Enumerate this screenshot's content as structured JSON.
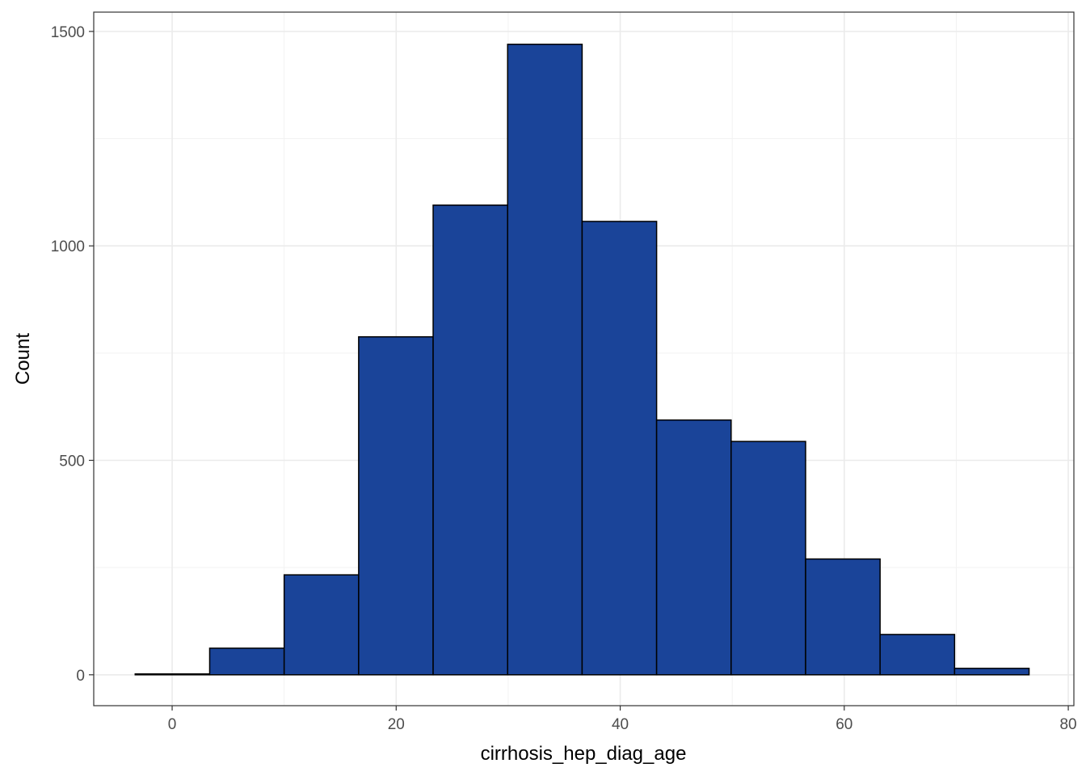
{
  "chart_data": {
    "type": "histogram",
    "xlabel": "cirrhosis_hep_diag_age",
    "ylabel": "Count",
    "xlim": [
      -7,
      80.5
    ],
    "ylim": [
      -72,
      1545
    ],
    "x_ticks": [
      0,
      20,
      40,
      60,
      80
    ],
    "y_ticks": [
      0,
      500,
      1000,
      1500
    ],
    "bins": [
      {
        "x0": -3.3,
        "x1": 3.35,
        "count": 2
      },
      {
        "x0": 3.35,
        "x1": 10.0,
        "count": 62
      },
      {
        "x0": 10.0,
        "x1": 16.65,
        "count": 233
      },
      {
        "x0": 16.65,
        "x1": 23.3,
        "count": 788
      },
      {
        "x0": 23.3,
        "x1": 29.95,
        "count": 1095
      },
      {
        "x0": 29.95,
        "x1": 36.6,
        "count": 1470
      },
      {
        "x0": 36.6,
        "x1": 43.25,
        "count": 1057
      },
      {
        "x0": 43.25,
        "x1": 49.9,
        "count": 594
      },
      {
        "x0": 49.9,
        "x1": 56.55,
        "count": 544
      },
      {
        "x0": 56.55,
        "x1": 63.2,
        "count": 270
      },
      {
        "x0": 63.2,
        "x1": 69.85,
        "count": 94
      },
      {
        "x0": 69.85,
        "x1": 76.5,
        "count": 15
      }
    ],
    "fill_color": "#1a4499",
    "border_color": "#000000",
    "grid": true,
    "legend": "none"
  }
}
